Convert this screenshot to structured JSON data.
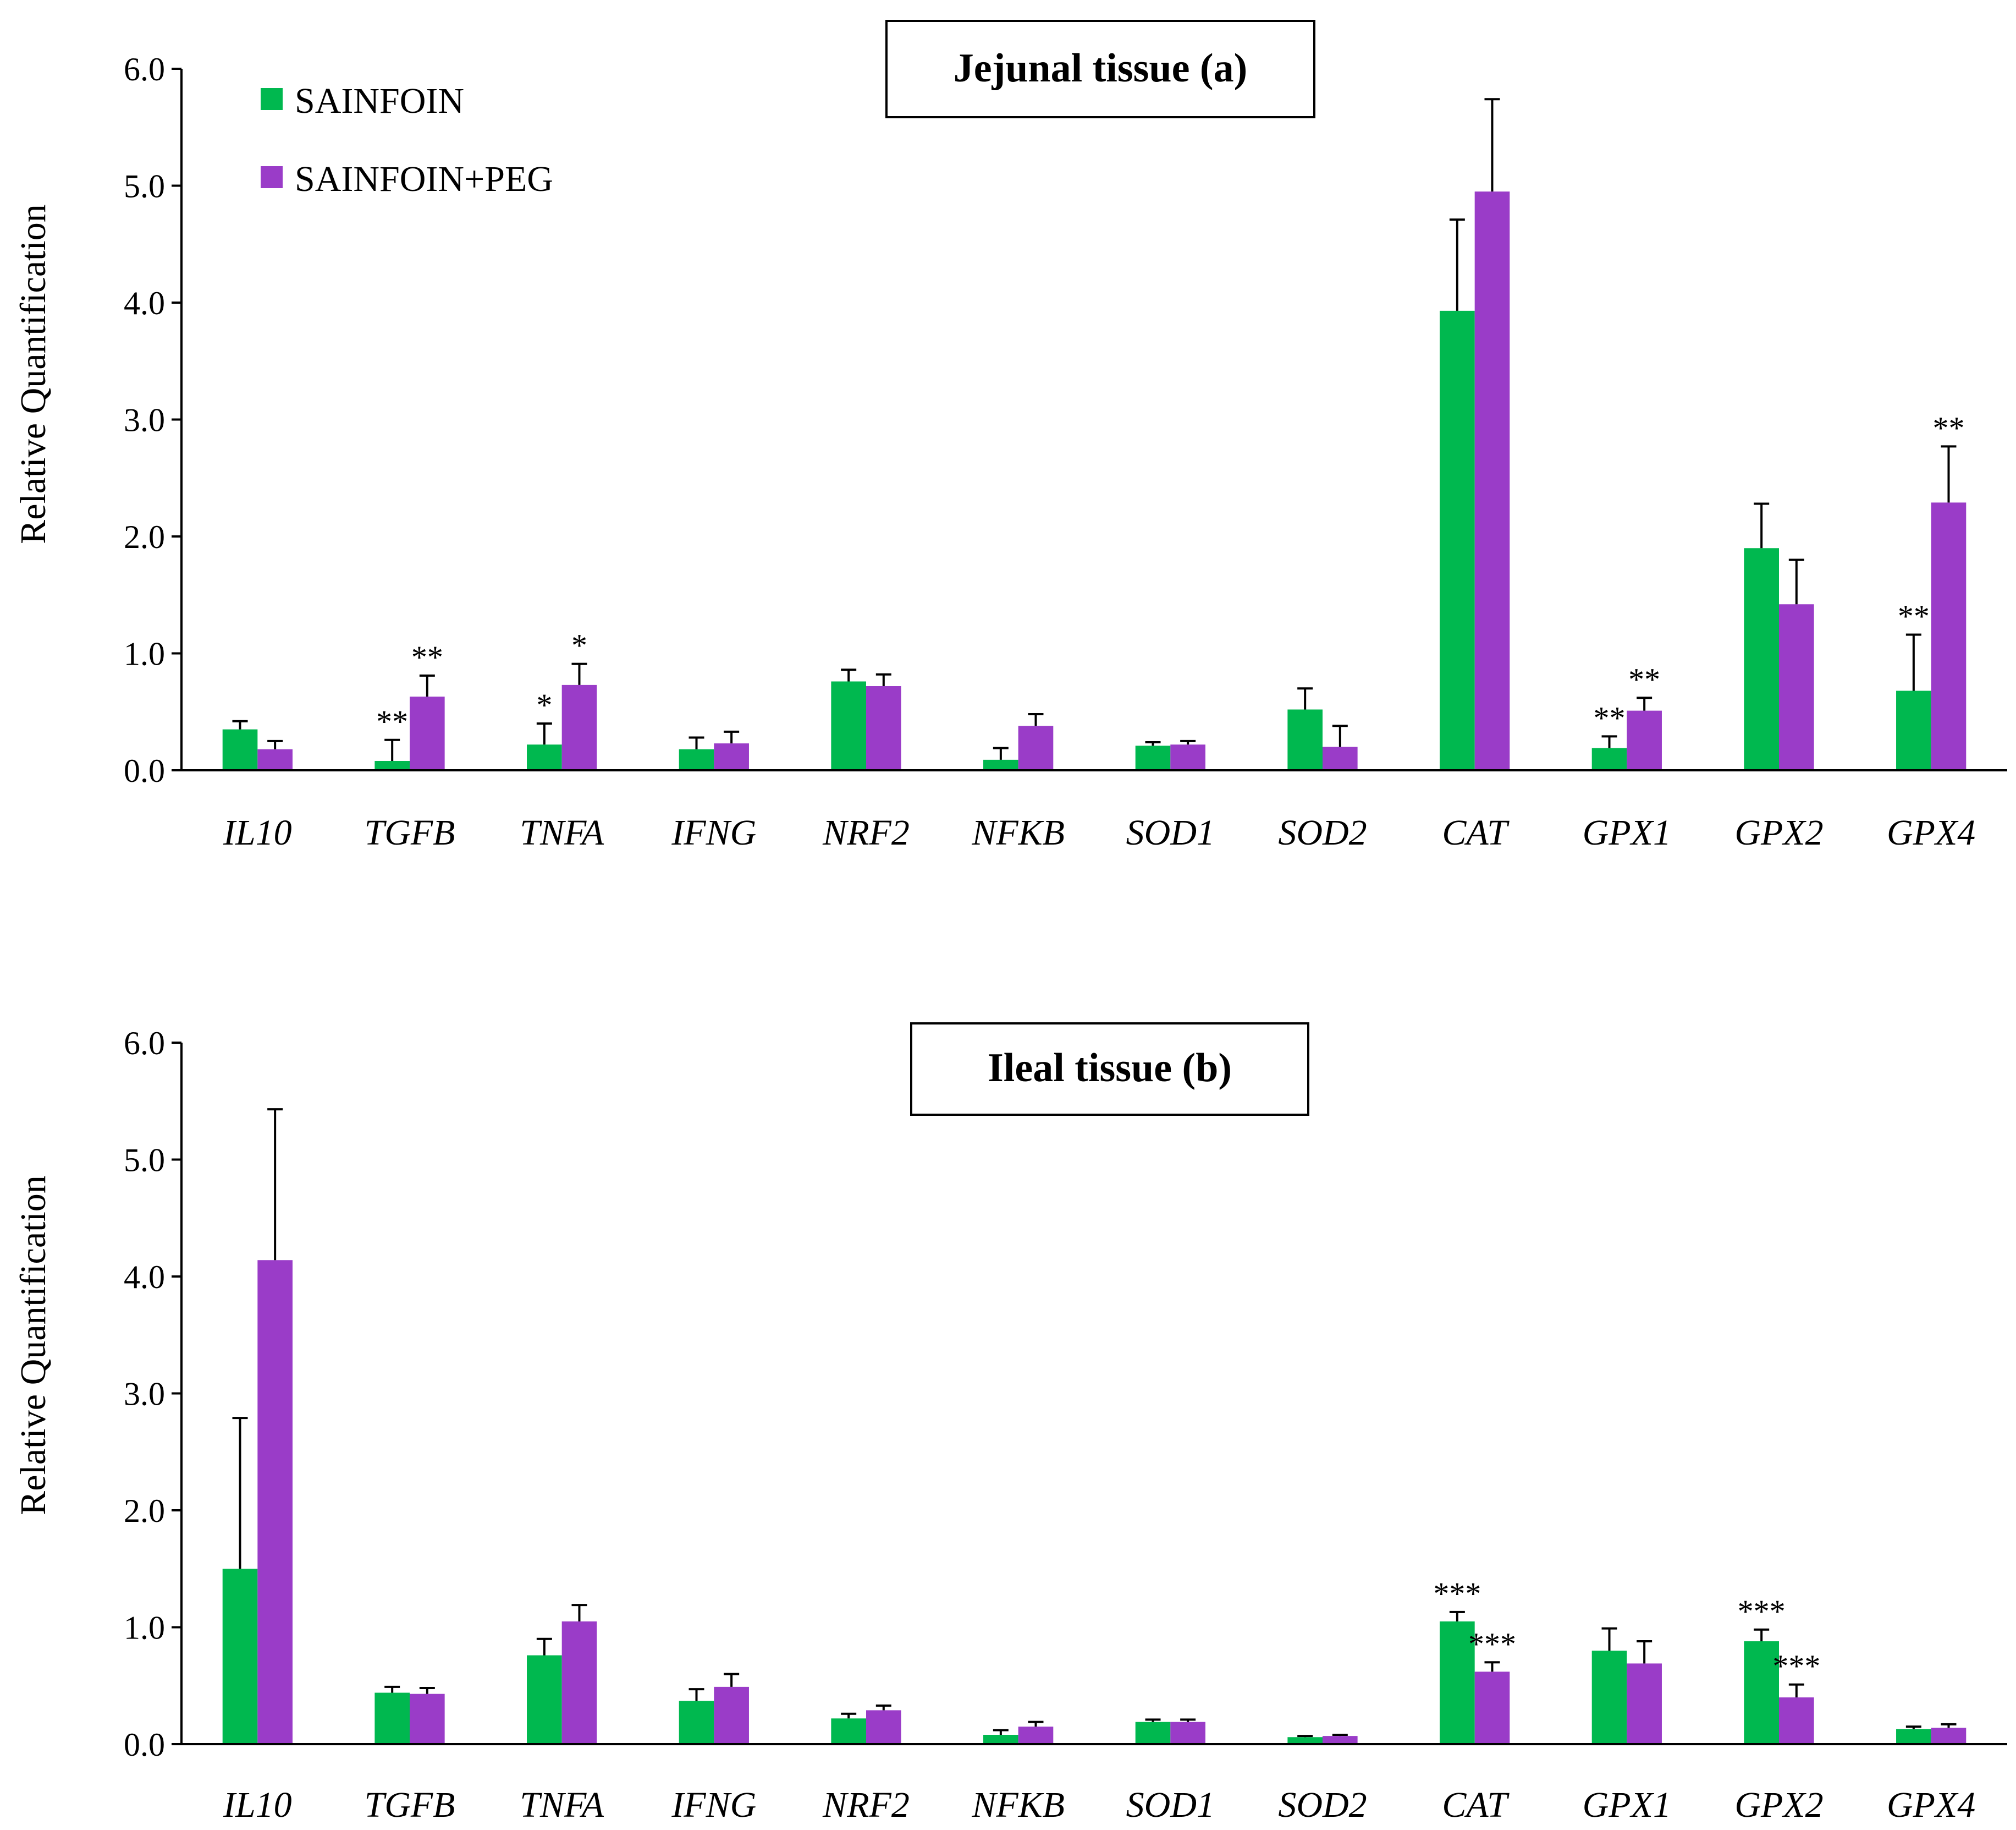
{
  "colors": {
    "sainfoin": "#00B84F",
    "sainfoin_peg": "#9A3CC8",
    "axis": "#000000"
  },
  "legend": {
    "items": [
      "SAINFOIN",
      "SAINFOIN+PEG"
    ],
    "placement": "top-left"
  },
  "chart_data": [
    {
      "type": "bar",
      "title": "Jejunal tissue (a)",
      "ylabel": "Relative Quantification",
      "xlabel": "",
      "ylim": [
        0,
        6
      ],
      "yticks": [
        "0.0",
        "1.0",
        "2.0",
        "3.0",
        "4.0",
        "5.0",
        "6.0"
      ],
      "grid": false,
      "categories": [
        "IL10",
        "TGFB",
        "TNFA",
        "IFNG",
        "NRF2",
        "NFKB",
        "SOD1",
        "SOD2",
        "CAT",
        "GPX1",
        "GPX2",
        "GPX4"
      ],
      "series": [
        {
          "name": "SAINFOIN",
          "values": [
            0.35,
            0.08,
            0.22,
            0.18,
            0.76,
            0.09,
            0.21,
            0.52,
            3.93,
            0.19,
            1.9,
            0.68
          ],
          "errors": [
            0.07,
            0.18,
            0.18,
            0.1,
            0.1,
            0.1,
            0.03,
            0.18,
            0.78,
            0.1,
            0.38,
            0.48
          ],
          "significance": [
            "",
            "**",
            "*",
            "",
            "",
            "",
            "",
            "",
            "",
            "**",
            "",
            "**"
          ]
        },
        {
          "name": "SAINFOIN+PEG",
          "values": [
            0.18,
            0.63,
            0.73,
            0.23,
            0.72,
            0.38,
            0.22,
            0.2,
            4.95,
            0.51,
            1.42,
            2.29
          ],
          "errors": [
            0.07,
            0.18,
            0.18,
            0.1,
            0.1,
            0.1,
            0.03,
            0.18,
            0.79,
            0.11,
            0.38,
            0.48
          ],
          "significance": [
            "",
            "**",
            "*",
            "",
            "",
            "",
            "",
            "",
            "",
            "**",
            "",
            "**"
          ]
        }
      ]
    },
    {
      "type": "bar",
      "title": "Ileal tissue (b)",
      "ylabel": "Relative Quantification",
      "xlabel": "",
      "ylim": [
        0,
        6
      ],
      "yticks": [
        "0.0",
        "1.0",
        "2.0",
        "3.0",
        "4.0",
        "5.0",
        "6.0"
      ],
      "grid": false,
      "categories": [
        "IL10",
        "TGFB",
        "TNFA",
        "IFNG",
        "NRF2",
        "NFKB",
        "SOD1",
        "SOD2",
        "CAT",
        "GPX1",
        "GPX2",
        "GPX4"
      ],
      "series": [
        {
          "name": "SAINFOIN",
          "values": [
            1.5,
            0.44,
            0.76,
            0.37,
            0.22,
            0.08,
            0.19,
            0.06,
            1.05,
            0.8,
            0.88,
            0.13
          ],
          "errors": [
            1.29,
            0.05,
            0.14,
            0.1,
            0.04,
            0.04,
            0.02,
            0.01,
            0.08,
            0.19,
            0.1,
            0.02
          ],
          "significance": [
            "",
            "",
            "",
            "",
            "",
            "",
            "",
            "",
            "***",
            "",
            "***",
            ""
          ]
        },
        {
          "name": "SAINFOIN+PEG",
          "values": [
            4.14,
            0.43,
            1.05,
            0.49,
            0.29,
            0.15,
            0.19,
            0.07,
            0.62,
            0.69,
            0.4,
            0.14
          ],
          "errors": [
            1.29,
            0.05,
            0.14,
            0.11,
            0.04,
            0.04,
            0.02,
            0.01,
            0.08,
            0.19,
            0.11,
            0.03
          ],
          "significance": [
            "",
            "",
            "",
            "",
            "",
            "",
            "",
            "",
            "***",
            "",
            "***",
            ""
          ]
        }
      ]
    }
  ]
}
